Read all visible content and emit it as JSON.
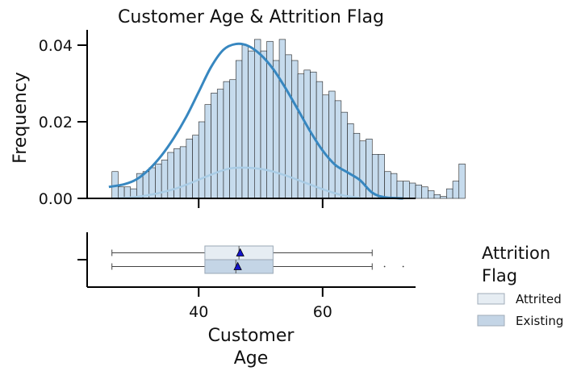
{
  "chart_data": {
    "type": "histogram",
    "title": "Customer Age & Attrition Flag",
    "xlabel_lines": [
      "Customer",
      "Age"
    ],
    "ylabel": "Frequency",
    "xlim": [
      22,
      75
    ],
    "ylim": [
      0,
      0.044
    ],
    "xticks": [
      40,
      60
    ],
    "yticks": [
      0.0,
      0.02,
      0.04
    ],
    "ytick_labels": [
      "0.00",
      "0.02",
      "0.04"
    ],
    "bin_start": 26,
    "bin_width": 1,
    "hist_values": [
      0.007,
      0.003,
      0.003,
      0.0025,
      0.0065,
      0.007,
      0.008,
      0.009,
      0.01,
      0.012,
      0.013,
      0.0135,
      0.0155,
      0.0165,
      0.02,
      0.0245,
      0.0275,
      0.0285,
      0.0305,
      0.031,
      0.036,
      0.04,
      0.0385,
      0.0415,
      0.0385,
      0.041,
      0.036,
      0.0415,
      0.0375,
      0.036,
      0.0325,
      0.0335,
      0.033,
      0.0305,
      0.027,
      0.028,
      0.0255,
      0.0225,
      0.0195,
      0.017,
      0.015,
      0.0155,
      0.0115,
      0.0115,
      0.007,
      0.0065,
      0.0045,
      0.0045,
      0.004,
      0.0035,
      0.003,
      0.002,
      0.001,
      0.0005,
      0.0025,
      0.0045,
      0.009
    ],
    "kde_existing": {
      "x": [
        25.5,
        28,
        30,
        32,
        34,
        36,
        38,
        40,
        42,
        44,
        46,
        48,
        50,
        52,
        54,
        56,
        58,
        60,
        62,
        64,
        66,
        68,
        70,
        73
      ],
      "y": [
        0.003,
        0.0037,
        0.005,
        0.0076,
        0.0112,
        0.0158,
        0.0213,
        0.0278,
        0.0343,
        0.0388,
        0.0403,
        0.0398,
        0.0375,
        0.0338,
        0.0288,
        0.0232,
        0.0175,
        0.0125,
        0.0088,
        0.0068,
        0.0048,
        0.0015,
        0.0003,
        0.0
      ]
    },
    "kde_attrited": {
      "x": [
        27,
        30,
        33,
        36,
        39,
        42,
        45,
        48,
        51,
        54,
        57,
        60,
        63,
        66
      ],
      "y": [
        0.0,
        0.0004,
        0.0012,
        0.0024,
        0.0042,
        0.0062,
        0.0078,
        0.008,
        0.0074,
        0.006,
        0.0042,
        0.0024,
        0.0009,
        0.0001
      ]
    },
    "box": {
      "attrited": {
        "whisker_low": 26,
        "q1": 41,
        "median": 46.5,
        "mean": 46.7,
        "q3": 52,
        "whisker_high": 68,
        "outliers": []
      },
      "existing": {
        "whisker_low": 26,
        "q1": 41,
        "median": 46,
        "mean": 46.3,
        "q3": 52,
        "whisker_high": 68,
        "outliers": [
          70,
          73
        ]
      }
    },
    "legend": {
      "title_lines": [
        "Attrition",
        "Flag"
      ],
      "placement": "right",
      "entries": [
        {
          "label": "Attrited",
          "color": "#e6edf3"
        },
        {
          "label": "Existing",
          "color": "#c4d5e6"
        }
      ]
    },
    "colors": {
      "hist_fill": "#c6dbed",
      "kde_existing": "#3787c0",
      "kde_attrited": "#a9cce5",
      "mean_marker": "#1414cc"
    }
  }
}
